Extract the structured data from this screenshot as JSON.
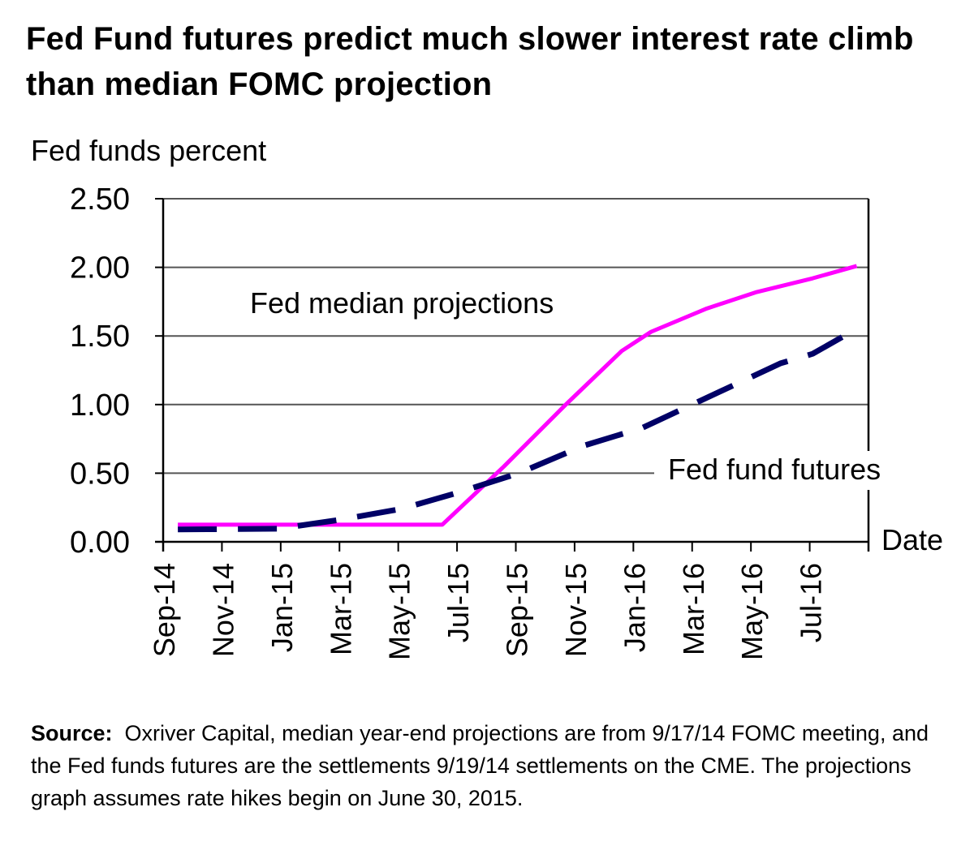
{
  "title": "Fed Fund futures predict much slower interest rate climb than median FOMC projection",
  "source": {
    "label": "Source:",
    "text": "Oxriver Capital, median year-end projections are from 9/17/14 FOMC meeting, and the Fed funds futures are the settlements 9/19/14 settlements on the CME. The projections graph assumes rate hikes begin on June 30, 2015."
  },
  "colors": {
    "fed_median": "#ff00ff",
    "futures": "#000066",
    "grid": "#555555",
    "axis": "#000000"
  },
  "chart_data": {
    "type": "line",
    "title": "Fed Fund futures predict much slower interest rate climb than median FOMC projection",
    "xlabel": "Date",
    "ylabel": "Fed funds percent",
    "ylim": [
      0,
      2.5
    ],
    "x_unit": "months since Sep-14",
    "xlim": [
      0,
      24
    ],
    "yticks": [
      "0.00",
      "0.50",
      "1.00",
      "1.50",
      "2.00",
      "2.50"
    ],
    "ytick_values": [
      0,
      0.5,
      1.0,
      1.5,
      2.0,
      2.5
    ],
    "xticks": [
      "Sep-14",
      "Nov-14",
      "Jan-15",
      "Mar-15",
      "May-15",
      "Jul-15",
      "Sep-15",
      "Nov-15",
      "Jan-16",
      "Mar-16",
      "May-16",
      "Jul-16"
    ],
    "xtick_values": [
      0,
      2,
      4,
      6,
      8,
      10,
      12,
      14,
      16,
      18,
      20,
      22
    ],
    "grid": true,
    "series": [
      {
        "name": "Fed median projections",
        "style": "solid",
        "x": [
          0.5,
          9.5,
          11.6,
          13.7,
          15.6,
          16.6,
          18.5,
          20.2,
          22.1,
          23.6
        ],
        "y": [
          0.125,
          0.125,
          0.55,
          1.0,
          1.39,
          1.53,
          1.7,
          1.82,
          1.92,
          2.01
        ]
      },
      {
        "name": "Fed fund futures",
        "style": "dashed",
        "x": [
          0.5,
          3.9,
          6.0,
          8.1,
          9.9,
          12.1,
          14.3,
          16.3,
          18.2,
          21.0,
          22.1,
          23.5
        ],
        "y": [
          0.09,
          0.095,
          0.16,
          0.24,
          0.35,
          0.5,
          0.7,
          0.83,
          1.02,
          1.3,
          1.37,
          1.54
        ]
      }
    ],
    "annotations": [
      {
        "text": "Fed median projections",
        "series": "Fed median projections"
      },
      {
        "text": "Fed fund futures",
        "series": "Fed fund futures"
      }
    ]
  }
}
